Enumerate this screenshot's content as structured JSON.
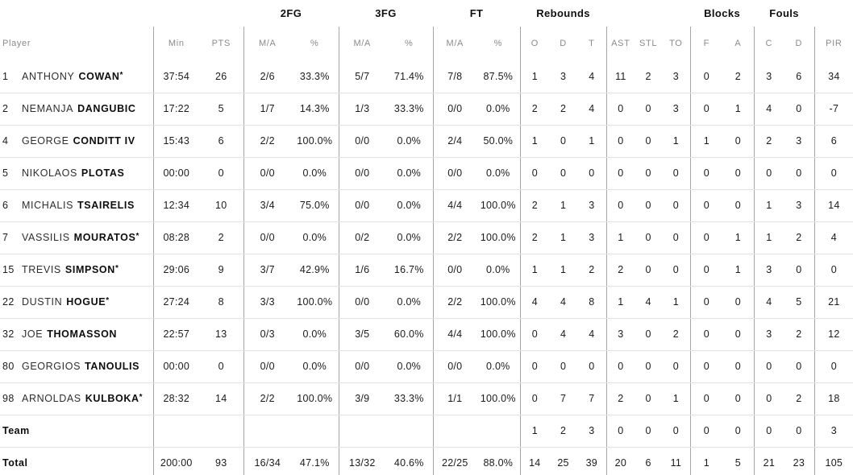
{
  "table": {
    "groups": {
      "fg2": "2FG",
      "fg3": "3FG",
      "ft": "FT",
      "rebounds": "Rebounds",
      "blocks": "Blocks",
      "fouls": "Fouls"
    },
    "sub_headers": [
      "Player",
      "Min",
      "PTS",
      "M/A",
      "%",
      "M/A",
      "%",
      "M/A",
      "%",
      "O",
      "D",
      "T",
      "AST",
      "STL",
      "TO",
      "F",
      "A",
      "C",
      "D",
      "PIR"
    ],
    "rows": [
      {
        "number": "1",
        "first": "ANTHONY",
        "last": "COWAN",
        "star": "*",
        "min": "37:54",
        "pts": "26",
        "fg2_ma": "2/6",
        "fg2_pct": "33.3%",
        "fg3_ma": "5/7",
        "fg3_pct": "71.4%",
        "ft_ma": "7/8",
        "ft_pct": "87.5%",
        "o": "1",
        "d": "3",
        "t": "4",
        "ast": "11",
        "stl": "2",
        "to": "3",
        "bf": "0",
        "ba": "2",
        "fc": "3",
        "fd": "6",
        "pir": "34"
      },
      {
        "number": "2",
        "first": "NEMANJA",
        "last": "DANGUBIC",
        "star": "",
        "min": "17:22",
        "pts": "5",
        "fg2_ma": "1/7",
        "fg2_pct": "14.3%",
        "fg3_ma": "1/3",
        "fg3_pct": "33.3%",
        "ft_ma": "0/0",
        "ft_pct": "0.0%",
        "o": "2",
        "d": "2",
        "t": "4",
        "ast": "0",
        "stl": "0",
        "to": "3",
        "bf": "0",
        "ba": "1",
        "fc": "4",
        "fd": "0",
        "pir": "-7"
      },
      {
        "number": "4",
        "first": "GEORGE",
        "last": "CONDITT IV",
        "star": "",
        "min": "15:43",
        "pts": "6",
        "fg2_ma": "2/2",
        "fg2_pct": "100.0%",
        "fg3_ma": "0/0",
        "fg3_pct": "0.0%",
        "ft_ma": "2/4",
        "ft_pct": "50.0%",
        "o": "1",
        "d": "0",
        "t": "1",
        "ast": "0",
        "stl": "0",
        "to": "1",
        "bf": "1",
        "ba": "0",
        "fc": "2",
        "fd": "3",
        "pir": "6"
      },
      {
        "number": "5",
        "first": "NIKOLAOS",
        "last": "PLOTAS",
        "star": "",
        "min": "00:00",
        "pts": "0",
        "fg2_ma": "0/0",
        "fg2_pct": "0.0%",
        "fg3_ma": "0/0",
        "fg3_pct": "0.0%",
        "ft_ma": "0/0",
        "ft_pct": "0.0%",
        "o": "0",
        "d": "0",
        "t": "0",
        "ast": "0",
        "stl": "0",
        "to": "0",
        "bf": "0",
        "ba": "0",
        "fc": "0",
        "fd": "0",
        "pir": "0"
      },
      {
        "number": "6",
        "first": "MICHALIS",
        "last": "TSAIRELIS",
        "star": "",
        "min": "12:34",
        "pts": "10",
        "fg2_ma": "3/4",
        "fg2_pct": "75.0%",
        "fg3_ma": "0/0",
        "fg3_pct": "0.0%",
        "ft_ma": "4/4",
        "ft_pct": "100.0%",
        "o": "2",
        "d": "1",
        "t": "3",
        "ast": "0",
        "stl": "0",
        "to": "0",
        "bf": "0",
        "ba": "0",
        "fc": "1",
        "fd": "3",
        "pir": "14"
      },
      {
        "number": "7",
        "first": "VASSILIS",
        "last": "MOURATOS",
        "star": "*",
        "min": "08:28",
        "pts": "2",
        "fg2_ma": "0/0",
        "fg2_pct": "0.0%",
        "fg3_ma": "0/2",
        "fg3_pct": "0.0%",
        "ft_ma": "2/2",
        "ft_pct": "100.0%",
        "o": "2",
        "d": "1",
        "t": "3",
        "ast": "1",
        "stl": "0",
        "to": "0",
        "bf": "0",
        "ba": "1",
        "fc": "1",
        "fd": "2",
        "pir": "4"
      },
      {
        "number": "15",
        "first": "TREVIS",
        "last": "SIMPSON",
        "star": "*",
        "min": "29:06",
        "pts": "9",
        "fg2_ma": "3/7",
        "fg2_pct": "42.9%",
        "fg3_ma": "1/6",
        "fg3_pct": "16.7%",
        "ft_ma": "0/0",
        "ft_pct": "0.0%",
        "o": "1",
        "d": "1",
        "t": "2",
        "ast": "2",
        "stl": "0",
        "to": "0",
        "bf": "0",
        "ba": "1",
        "fc": "3",
        "fd": "0",
        "pir": "0"
      },
      {
        "number": "22",
        "first": "DUSTIN",
        "last": "HOGUE",
        "star": "*",
        "min": "27:24",
        "pts": "8",
        "fg2_ma": "3/3",
        "fg2_pct": "100.0%",
        "fg3_ma": "0/0",
        "fg3_pct": "0.0%",
        "ft_ma": "2/2",
        "ft_pct": "100.0%",
        "o": "4",
        "d": "4",
        "t": "8",
        "ast": "1",
        "stl": "4",
        "to": "1",
        "bf": "0",
        "ba": "0",
        "fc": "4",
        "fd": "5",
        "pir": "21"
      },
      {
        "number": "32",
        "first": "JOE",
        "last": "THOMASSON",
        "star": "",
        "min": "22:57",
        "pts": "13",
        "fg2_ma": "0/3",
        "fg2_pct": "0.0%",
        "fg3_ma": "3/5",
        "fg3_pct": "60.0%",
        "ft_ma": "4/4",
        "ft_pct": "100.0%",
        "o": "0",
        "d": "4",
        "t": "4",
        "ast": "3",
        "stl": "0",
        "to": "2",
        "bf": "0",
        "ba": "0",
        "fc": "3",
        "fd": "2",
        "pir": "12"
      },
      {
        "number": "80",
        "first": "GEORGIOS",
        "last": "TANOULIS",
        "star": "",
        "min": "00:00",
        "pts": "0",
        "fg2_ma": "0/0",
        "fg2_pct": "0.0%",
        "fg3_ma": "0/0",
        "fg3_pct": "0.0%",
        "ft_ma": "0/0",
        "ft_pct": "0.0%",
        "o": "0",
        "d": "0",
        "t": "0",
        "ast": "0",
        "stl": "0",
        "to": "0",
        "bf": "0",
        "ba": "0",
        "fc": "0",
        "fd": "0",
        "pir": "0"
      },
      {
        "number": "98",
        "first": "ARNOLDAS",
        "last": "KULBOKA",
        "star": "*",
        "min": "28:32",
        "pts": "14",
        "fg2_ma": "2/2",
        "fg2_pct": "100.0%",
        "fg3_ma": "3/9",
        "fg3_pct": "33.3%",
        "ft_ma": "1/1",
        "ft_pct": "100.0%",
        "o": "0",
        "d": "7",
        "t": "7",
        "ast": "2",
        "stl": "0",
        "to": "1",
        "bf": "0",
        "ba": "0",
        "fc": "0",
        "fd": "2",
        "pir": "18"
      },
      {
        "label": "Team",
        "min": "",
        "pts": "",
        "fg2_ma": "",
        "fg2_pct": "",
        "fg3_ma": "",
        "fg3_pct": "",
        "ft_ma": "",
        "ft_pct": "",
        "o": "1",
        "d": "2",
        "t": "3",
        "ast": "0",
        "stl": "0",
        "to": "0",
        "bf": "0",
        "ba": "0",
        "fc": "0",
        "fd": "0",
        "pir": "3"
      },
      {
        "label": "Total",
        "min": "200:00",
        "pts": "93",
        "fg2_ma": "16/34",
        "fg2_pct": "47.1%",
        "fg3_ma": "13/32",
        "fg3_pct": "40.6%",
        "ft_ma": "22/25",
        "ft_pct": "88.0%",
        "o": "14",
        "d": "25",
        "t": "39",
        "ast": "20",
        "stl": "6",
        "to": "11",
        "bf": "1",
        "ba": "5",
        "fc": "21",
        "fd": "23",
        "pir": "105"
      }
    ]
  }
}
